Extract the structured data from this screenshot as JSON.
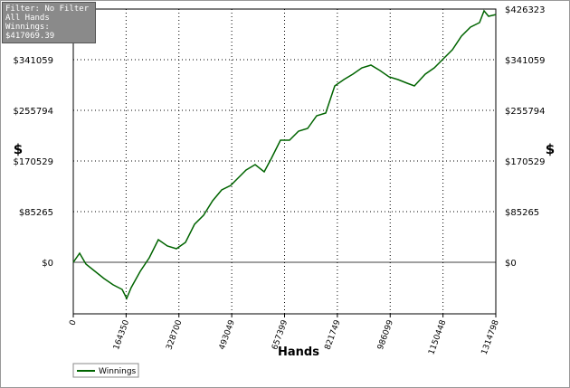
{
  "chart_data": {
    "type": "line",
    "x_label": "Hands",
    "y_label": "$",
    "info": [
      "Filter: No Filter",
      "All Hands",
      "Winnings: $417069.39"
    ],
    "xlim": [
      0,
      1314798
    ],
    "xticks": [
      0,
      164350,
      328700,
      493049,
      657399,
      821749,
      986099,
      1150448,
      1314798
    ],
    "ylim": [
      -86800,
      426323
    ],
    "yticks": [
      {
        "value": 0,
        "label": "$0"
      },
      {
        "value": 85265,
        "label": "$85265"
      },
      {
        "value": 170529,
        "label": "$170529"
      },
      {
        "value": 255794,
        "label": "$255794"
      },
      {
        "value": 341059,
        "label": "$341059"
      },
      {
        "value": 426323,
        "label": "$426323"
      }
    ],
    "grid": true,
    "x": [
      0,
      19700,
      39400,
      67600,
      95700,
      123900,
      152000,
      166100,
      180200,
      208300,
      236500,
      264600,
      292800,
      321000,
      349100,
      377300,
      405400,
      433600,
      461700,
      489900,
      509600,
      537700,
      565900,
      594000,
      616600,
      644700,
      672900,
      701000,
      729200,
      757400,
      785500,
      813700,
      841800,
      870000,
      898200,
      926300,
      954500,
      982600,
      1010800,
      1038900,
      1061500,
      1095200,
      1123400,
      1151500,
      1179700,
      1207800,
      1236000,
      1264100,
      1278200,
      1292300,
      1314798
    ],
    "series": [
      {
        "name": "Winnings",
        "color": "#006400",
        "values": [
          0,
          15200,
          -3000,
          -15200,
          -27400,
          -38000,
          -45700,
          -60900,
          -42600,
          -15200,
          7600,
          38100,
          27400,
          22800,
          33500,
          64000,
          79200,
          103500,
          121800,
          129400,
          140100,
          155300,
          164400,
          152300,
          175100,
          205600,
          205600,
          220800,
          225300,
          246700,
          251200,
          296900,
          307600,
          316700,
          327400,
          331900,
          322800,
          312100,
          307600,
          301500,
          296900,
          316700,
          327400,
          342600,
          357800,
          380600,
          395900,
          403500,
          423300,
          414200,
          417069
        ]
      }
    ]
  }
}
